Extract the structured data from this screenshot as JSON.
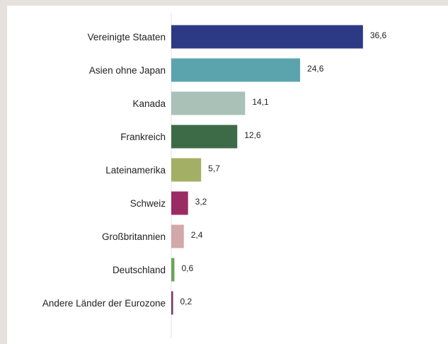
{
  "chart_data": {
    "type": "bar",
    "orientation": "horizontal",
    "title": "",
    "xlabel": "",
    "ylabel": "",
    "xlim": [
      0,
      40
    ],
    "grid": false,
    "legend": "none",
    "categories": [
      "Vereinigte Staaten",
      "Asien ohne Japan",
      "Kanada",
      "Frankreich",
      "Lateinamerika",
      "Schweiz",
      "Großbritannien",
      "Deutschland",
      "Andere Länder der Eurozone"
    ],
    "values": [
      36.6,
      24.6,
      14.1,
      12.6,
      5.7,
      3.2,
      2.4,
      0.6,
      0.2
    ],
    "value_labels": [
      "36,6",
      "24,6",
      "14,1",
      "12,6",
      "5,7",
      "3,2",
      "2,4",
      "0,6",
      "0,2"
    ],
    "colors": [
      "#2c3a85",
      "#5ba3ad",
      "#aac1b8",
      "#3d6b48",
      "#a3af64",
      "#9a2b63",
      "#d3a8a8",
      "#6aa35c",
      "#7a3560"
    ]
  }
}
